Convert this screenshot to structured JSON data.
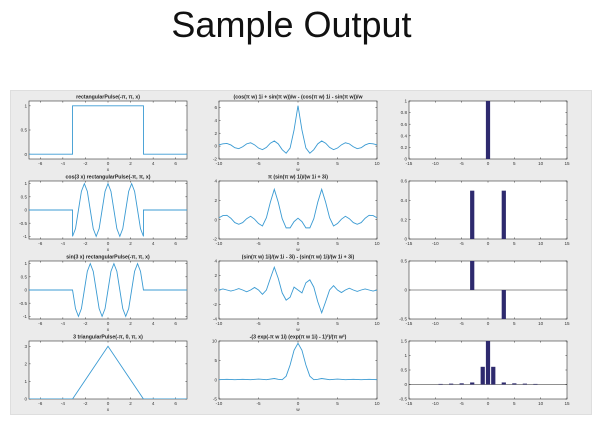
{
  "slide": {
    "title": "Sample Output"
  },
  "colors": {
    "line": "#3b9bd3",
    "bar": "#2e2a6e",
    "axes": "#333333",
    "figure_bg": "#ebebeb"
  },
  "chart_data": [
    {
      "type": "line",
      "title": "rectangularPulse(-π, π, x)",
      "xlabel": "x",
      "ylabel": "",
      "xlim": [
        -7,
        7
      ],
      "ylim": [
        -0.1,
        1.1
      ],
      "xticks": [
        -6,
        -4,
        -2,
        0,
        2,
        4,
        6
      ],
      "yticks": [
        0,
        0.5,
        1
      ],
      "ytick_labels": [
        "0",
        "0.5",
        "1"
      ],
      "series": [
        {
          "x": [
            -7,
            -3.1416,
            -3.1416,
            3.1416,
            3.1416,
            7
          ],
          "y": [
            0,
            0,
            1,
            1,
            0,
            0
          ]
        }
      ]
    },
    {
      "type": "line",
      "title": "(cos(π w) 1i + sin(π w))/w - (cos(π w) 1i - sin(π w))/w",
      "xlabel": "w",
      "ylabel": "",
      "xlim": [
        -10,
        10
      ],
      "ylim": [
        -2,
        7
      ],
      "xticks": [
        -10,
        -5,
        0,
        5,
        10
      ],
      "yticks": [
        -2,
        0,
        2,
        4,
        6
      ],
      "ytick_labels": [
        "-2",
        "0",
        "2",
        "4",
        "6"
      ],
      "series": [
        {
          "x": [
            -10,
            -9.5,
            -9,
            -8.5,
            -8,
            -7.5,
            -7,
            -6.5,
            -6,
            -5.5,
            -5,
            -4.5,
            -4,
            -3.5,
            -3,
            -2.5,
            -2,
            -1.5,
            -1,
            -0.5,
            0,
            0.5,
            1,
            1.5,
            2,
            2.5,
            3,
            3.5,
            4,
            4.5,
            5,
            5.5,
            6,
            6.5,
            7,
            7.5,
            8,
            8.5,
            9,
            9.5,
            10
          ],
          "y": [
            0.2,
            0.35,
            0.42,
            0.18,
            -0.25,
            -0.4,
            -0.1,
            0.35,
            0.52,
            0.2,
            -0.3,
            -0.55,
            -0.2,
            0.45,
            0.8,
            0.35,
            -0.55,
            -1.1,
            -0.3,
            2.5,
            6.28,
            2.5,
            -0.3,
            -1.1,
            -0.55,
            0.35,
            0.8,
            0.45,
            -0.2,
            -0.55,
            -0.3,
            0.2,
            0.52,
            0.35,
            -0.1,
            -0.4,
            -0.25,
            0.18,
            0.42,
            0.35,
            0.2
          ]
        }
      ]
    },
    {
      "type": "bar",
      "title": "",
      "xlabel": "",
      "ylabel": "",
      "xlim": [
        -15,
        15
      ],
      "ylim": [
        0,
        1
      ],
      "xticks": [
        -15,
        -10,
        -5,
        0,
        5,
        10,
        15
      ],
      "yticks": [
        0,
        0.2,
        0.4,
        0.6,
        0.8,
        1
      ],
      "ytick_labels": [
        "0",
        "0.2",
        "0.4",
        "0.6",
        "0.8",
        "1"
      ],
      "bars": [
        {
          "x": 0,
          "value": 1
        }
      ]
    },
    {
      "type": "line",
      "title": "cos(3 x) rectangularPulse(-π, π, x)",
      "xlabel": "x",
      "ylabel": "",
      "xlim": [
        -7,
        7
      ],
      "ylim": [
        -1.1,
        1.1
      ],
      "xticks": [
        -6,
        -4,
        -2,
        0,
        2,
        4,
        6
      ],
      "yticks": [
        -1,
        -0.5,
        0,
        0.5,
        1
      ],
      "ytick_labels": [
        "-1",
        "-0.5",
        "0",
        "0.5",
        "1"
      ],
      "series": [
        {
          "x": [
            -7,
            -3.1416,
            -3.1416,
            -2.8798,
            -2.618,
            -2.3562,
            -2.0944,
            -1.8326,
            -1.5708,
            -1.309,
            -1.0472,
            -0.7854,
            -0.5236,
            -0.2618,
            0,
            0.2618,
            0.5236,
            0.7854,
            1.0472,
            1.309,
            1.5708,
            1.8326,
            2.0944,
            2.3562,
            2.618,
            2.8798,
            3.1416,
            3.1416,
            7
          ],
          "y": [
            0,
            0,
            -1,
            -0.7071,
            0,
            0.7071,
            1,
            0.7071,
            0,
            -0.7071,
            -1,
            -0.7071,
            0,
            0.7071,
            1,
            0.7071,
            0,
            -0.7071,
            -1,
            -0.7071,
            0,
            0.7071,
            1,
            0.7071,
            0,
            -0.7071,
            -1,
            0,
            0
          ]
        }
      ]
    },
    {
      "type": "line",
      "title": "π (sin(π w) 1i)/(w 1i + 3i)",
      "xlabel": "w",
      "ylabel": "",
      "xlim": [
        -10,
        10
      ],
      "ylim": [
        -2,
        4
      ],
      "xticks": [
        -10,
        -5,
        0,
        5,
        10
      ],
      "yticks": [
        -2,
        0,
        2,
        4
      ],
      "ytick_labels": [
        "-2",
        "0",
        "2",
        "4"
      ],
      "series": [
        {
          "x": [
            -10,
            -9.5,
            -9,
            -8.5,
            -8,
            -7.5,
            -7,
            -6.5,
            -6,
            -5.5,
            -5,
            -4.5,
            -4,
            -3.5,
            -3,
            -2.5,
            -2,
            -1.5,
            -1,
            -0.5,
            0,
            0.5,
            1,
            1.5,
            2,
            2.5,
            3,
            3.5,
            4,
            4.5,
            5,
            5.5,
            6,
            6.5,
            7,
            7.5,
            8,
            8.5,
            9,
            9.5,
            10
          ],
          "y": [
            0.2,
            0.42,
            0.45,
            0.15,
            -0.3,
            -0.48,
            -0.3,
            0.1,
            0.35,
            0.05,
            -0.4,
            -0.65,
            0.2,
            1.8,
            3.14,
            1.8,
            0.1,
            -0.85,
            -0.85,
            -0.2,
            0.15,
            -0.2,
            -0.85,
            -0.85,
            0.1,
            1.8,
            3.14,
            1.8,
            0.2,
            -0.65,
            -0.4,
            0.05,
            0.35,
            0.1,
            -0.3,
            -0.48,
            -0.3,
            0.15,
            0.45,
            0.42,
            0.2
          ]
        }
      ]
    },
    {
      "type": "bar",
      "title": "",
      "xlabel": "",
      "ylabel": "",
      "xlim": [
        -15,
        15
      ],
      "ylim": [
        0,
        0.6
      ],
      "xticks": [
        -15,
        -10,
        -5,
        0,
        5,
        10,
        15
      ],
      "yticks": [
        0,
        0.2,
        0.4,
        0.6
      ],
      "ytick_labels": [
        "0",
        "0.2",
        "0.4",
        "0.6"
      ],
      "bars": [
        {
          "x": -3,
          "value": 0.5
        },
        {
          "x": 3,
          "value": 0.5
        }
      ]
    },
    {
      "type": "line",
      "title": "sin(3 x) rectangularPulse(-π, π, x)",
      "xlabel": "x",
      "ylabel": "",
      "xlim": [
        -7,
        7
      ],
      "ylim": [
        -1.1,
        1.1
      ],
      "xticks": [
        -6,
        -4,
        -2,
        0,
        2,
        4,
        6
      ],
      "yticks": [
        -1,
        -0.5,
        0,
        0.5,
        1
      ],
      "ytick_labels": [
        "-1",
        "-0.5",
        "0",
        "0.5",
        "1"
      ],
      "series": [
        {
          "x": [
            -7,
            -3.1416,
            -2.8798,
            -2.618,
            -2.3562,
            -2.0944,
            -1.8326,
            -1.5708,
            -1.309,
            -1.0472,
            -0.7854,
            -0.5236,
            -0.2618,
            0,
            0.2618,
            0.5236,
            0.7854,
            1.0472,
            1.309,
            1.5708,
            1.8326,
            2.0944,
            2.3562,
            2.618,
            2.8798,
            3.1416,
            7
          ],
          "y": [
            0,
            0,
            -0.7071,
            -1,
            -0.7071,
            0,
            0.7071,
            1,
            0.7071,
            0,
            -0.7071,
            -1,
            -0.7071,
            0,
            0.7071,
            1,
            0.7071,
            0,
            -0.7071,
            -1,
            -0.7071,
            0,
            0.7071,
            1,
            0.7071,
            0,
            0
          ]
        }
      ]
    },
    {
      "type": "line",
      "title": "(sin(π w) 1i)/(w 1i - 3i) - (sin(π w) 1i)/(w 1i + 3i)",
      "xlabel": "w",
      "ylabel": "",
      "xlim": [
        -10,
        10
      ],
      "ylim": [
        -4,
        4
      ],
      "xticks": [
        -10,
        -5,
        0,
        5,
        10
      ],
      "yticks": [
        -4,
        -2,
        0,
        2,
        4
      ],
      "ytick_labels": [
        "-4",
        "-2",
        "0",
        "2",
        "4"
      ],
      "series": [
        {
          "x": [
            -10,
            -9.5,
            -9,
            -8.5,
            -8,
            -7.5,
            -7,
            -6.5,
            -6,
            -5.5,
            -5,
            -4.5,
            -4,
            -3.5,
            -3,
            -2.5,
            -2,
            -1.5,
            -1,
            -0.5,
            0,
            0.5,
            1,
            1.5,
            2,
            2.5,
            3,
            3.5,
            4,
            4.5,
            5,
            5.5,
            6,
            6.5,
            7,
            7.5,
            8,
            8.5,
            9,
            9.5,
            10
          ],
          "y": [
            0,
            0.15,
            0,
            -0.15,
            0,
            0.2,
            0,
            -0.25,
            0,
            0.35,
            0,
            -0.6,
            0,
            1.6,
            3.14,
            1.6,
            -0.4,
            -1.4,
            -1.0,
            0.4,
            0,
            -0.4,
            1.0,
            1.4,
            0.4,
            -1.6,
            -3.14,
            -1.6,
            0,
            0.6,
            0,
            -0.35,
            0,
            0.25,
            0,
            -0.2,
            0,
            0.15,
            0,
            -0.15,
            0
          ]
        }
      ]
    },
    {
      "type": "bar",
      "title": "",
      "xlabel": "",
      "ylabel": "",
      "xlim": [
        -15,
        15
      ],
      "ylim": [
        -0.5,
        0.5
      ],
      "xticks": [
        -15,
        -10,
        -5,
        0,
        5,
        10,
        15
      ],
      "yticks": [
        -0.5,
        0,
        0.5
      ],
      "ytick_labels": [
        "-0.5",
        "0",
        "0.5"
      ],
      "bars": [
        {
          "x": -3,
          "value": 0.5
        },
        {
          "x": 3,
          "value": -0.5
        }
      ]
    },
    {
      "type": "line",
      "title": "3 triangularPulse(-π, 0, π, x)",
      "xlabel": "x",
      "ylabel": "",
      "xlim": [
        -7,
        7
      ],
      "ylim": [
        0,
        3.3
      ],
      "xticks": [
        -6,
        -4,
        -2,
        0,
        2,
        4,
        6
      ],
      "yticks": [
        0,
        1,
        2,
        3
      ],
      "ytick_labels": [
        "0",
        "1",
        "2",
        "3"
      ],
      "series": [
        {
          "x": [
            -7,
            -3.1416,
            0,
            3.1416,
            7
          ],
          "y": [
            0,
            0,
            3,
            0,
            0
          ]
        }
      ]
    },
    {
      "type": "line",
      "title": "-(3 exp(-π w 1i) (exp(π w 1i) - 1)²)/(π w²)",
      "xlabel": "w",
      "ylabel": "",
      "xlim": [
        -10,
        10
      ],
      "ylim": [
        -5,
        10
      ],
      "xticks": [
        -10,
        -5,
        0,
        5,
        10
      ],
      "yticks": [
        -5,
        0,
        5,
        10
      ],
      "ytick_labels": [
        "-5",
        "0",
        "5",
        "10"
      ],
      "series": [
        {
          "x": [
            -10,
            -9,
            -8,
            -7,
            -6,
            -5,
            -4,
            -3,
            -2.5,
            -2,
            -1.5,
            -1,
            -0.5,
            0,
            0.5,
            1,
            1.5,
            2,
            2.5,
            3,
            4,
            5,
            6,
            7,
            8,
            9,
            10
          ],
          "y": [
            0,
            0.1,
            0,
            0.1,
            0,
            0.15,
            0,
            0.3,
            0.1,
            0,
            0.9,
            3.8,
            7.6,
            9.42,
            7.6,
            3.8,
            0.9,
            0,
            0.1,
            0.3,
            0,
            0.15,
            0,
            0.1,
            0,
            0.1,
            0
          ]
        }
      ]
    },
    {
      "type": "bar",
      "title": "",
      "xlabel": "",
      "ylabel": "",
      "xlim": [
        -15,
        15
      ],
      "ylim": [
        -0.5,
        1.5
      ],
      "xticks": [
        -15,
        -10,
        -5,
        0,
        5,
        10,
        15
      ],
      "yticks": [
        -0.5,
        0,
        0.5,
        1,
        1.5
      ],
      "ytick_labels": [
        "-0.5",
        "0",
        "0.5",
        "1",
        "1.5"
      ],
      "bars": [
        {
          "x": -9,
          "value": 0.02
        },
        {
          "x": -7,
          "value": 0.03
        },
        {
          "x": -5,
          "value": 0.04
        },
        {
          "x": -3,
          "value": 0.07
        },
        {
          "x": -1,
          "value": 0.61
        },
        {
          "x": 0,
          "value": 1.5
        },
        {
          "x": 1,
          "value": 0.61
        },
        {
          "x": 3,
          "value": 0.07
        },
        {
          "x": 5,
          "value": 0.04
        },
        {
          "x": 7,
          "value": 0.03
        },
        {
          "x": 9,
          "value": 0.02
        }
      ]
    }
  ]
}
